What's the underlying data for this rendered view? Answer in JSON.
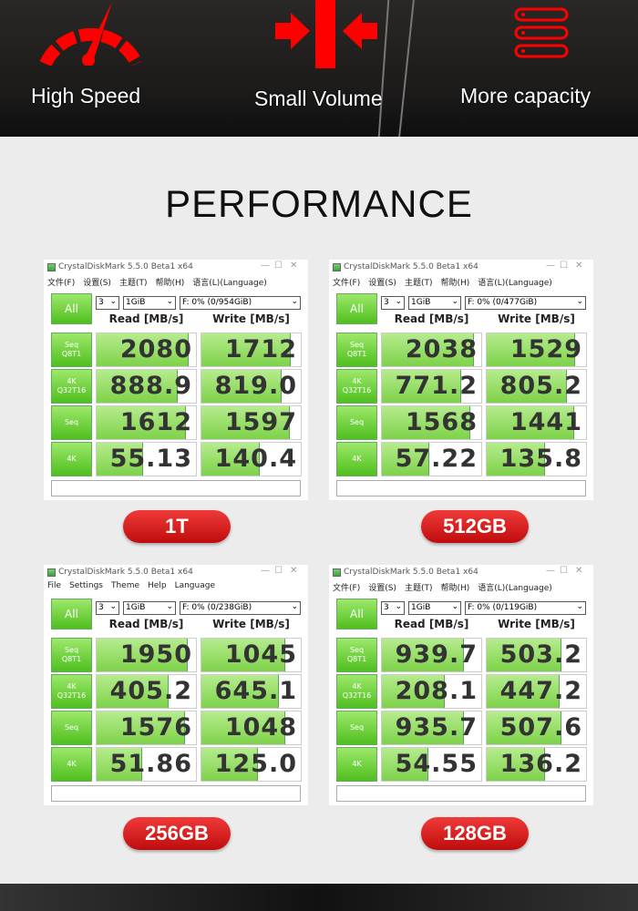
{
  "features": [
    {
      "label": "High Speed",
      "icon": "speedometer-icon"
    },
    {
      "label": "Small Volume",
      "icon": "compress-arrows-icon"
    },
    {
      "label": "More capacity",
      "icon": "storage-stack-icon"
    }
  ],
  "accent": "#e8101a",
  "title": "PERFORMANCE",
  "row_labels": [
    [
      "Seq",
      "Q8T1"
    ],
    [
      "4K",
      "Q32T16"
    ],
    [
      "Seq",
      ""
    ],
    [
      "4K",
      ""
    ]
  ],
  "panels": [
    {
      "window_title": "CrystalDiskMark 5.5.0 Beta1 x64",
      "menu": [
        "文件(F)",
        "设置(S)",
        "主题(T)",
        "帮助(H)",
        "语言(L)(Language)"
      ],
      "all": "All",
      "count": "3",
      "size": "1GiB",
      "drive": "F: 0% (0/954GiB)",
      "read_header": "Read [MB/s]",
      "write_header": "Write [MB/s]",
      "read": [
        "2080",
        "888.9",
        "1612",
        "55.13"
      ],
      "write": [
        "1712",
        "819.0",
        "1597",
        "140.4"
      ],
      "capacity": "1T"
    },
    {
      "window_title": "CrystalDiskMark 5.5.0 Beta1 x64",
      "menu": [
        "文件(F)",
        "设置(S)",
        "主题(T)",
        "帮助(H)",
        "语言(L)(Language)"
      ],
      "all": "All",
      "count": "3",
      "size": "1GiB",
      "drive": "F: 0% (0/477GiB)",
      "read_header": "Read [MB/s]",
      "write_header": "Write [MB/s]",
      "read": [
        "2038",
        "771.2",
        "1568",
        "57.22"
      ],
      "write": [
        "1529",
        "805.2",
        "1441",
        "135.8"
      ],
      "capacity": "512GB"
    },
    {
      "window_title": "CrystalDiskMark 5.5.0 Beta1 x64",
      "menu": [
        "File",
        "Settings",
        "Theme",
        "Help",
        "Language"
      ],
      "all": "All",
      "count": "3",
      "size": "1GiB",
      "drive": "F: 0% (0/238GiB)",
      "read_header": "Read [MB/s]",
      "write_header": "Write [MB/s]",
      "read": [
        "1950",
        "405.2",
        "1576",
        "51.86"
      ],
      "write": [
        "1045",
        "645.1",
        "1048",
        "125.0"
      ],
      "capacity": "256GB"
    },
    {
      "window_title": "CrystalDiskMark 5.5.0 Beta1 x64",
      "menu": [
        "文件(F)",
        "设置(S)",
        "主题(T)",
        "帮助(H)",
        "语言(L)(Language)"
      ],
      "all": "All",
      "count": "3",
      "size": "1GiB",
      "drive": "F: 0% (0/119GiB)",
      "read_header": "Read [MB/s]",
      "write_header": "Write [MB/s]",
      "read": [
        "939.7",
        "208.1",
        "935.7",
        "54.55"
      ],
      "write": [
        "503.2",
        "447.2",
        "507.6",
        "136.2"
      ],
      "capacity": "128GB"
    }
  ]
}
